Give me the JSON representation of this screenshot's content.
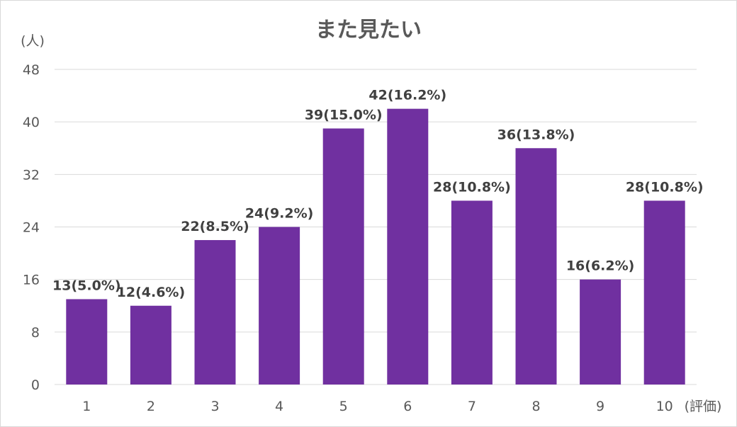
{
  "chart_data": {
    "type": "bar",
    "title": "また見たい",
    "ylabel": "(人)",
    "xlabel": "(評価)",
    "categories": [
      "1",
      "2",
      "3",
      "4",
      "5",
      "6",
      "7",
      "8",
      "9",
      "10"
    ],
    "values": [
      13,
      12,
      22,
      24,
      39,
      42,
      28,
      36,
      16,
      28
    ],
    "data_labels": [
      "13(5.0%)",
      "12(4.6%)",
      "22(8.5%)",
      "24(9.2%)",
      "39(15.0%)",
      "42(16.2%)",
      "28(10.8%)",
      "36(13.8%)",
      "16(6.2%)",
      "28(10.8%)"
    ],
    "ylim": [
      0,
      48
    ],
    "yticks": [
      0,
      8,
      16,
      24,
      32,
      40,
      48
    ],
    "grid": true,
    "bar_color": "#7030a0"
  }
}
